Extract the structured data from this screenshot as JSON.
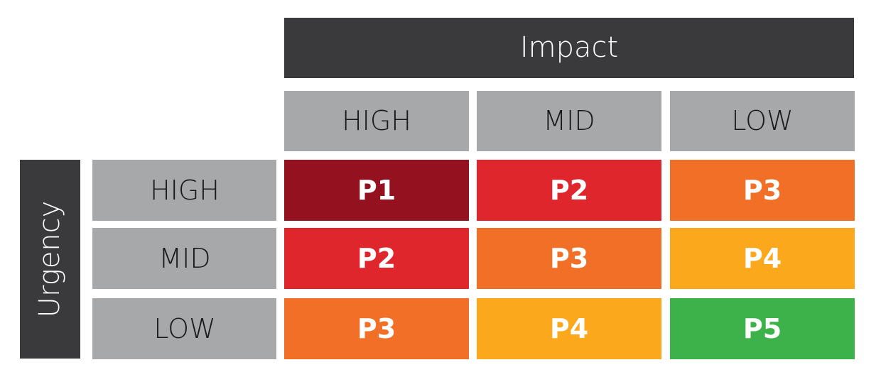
{
  "matrix": {
    "column_title": "Impact",
    "row_title": "Urgency",
    "columns": [
      "HIGH",
      "MID",
      "LOW"
    ],
    "rows": [
      "HIGH",
      "MID",
      "LOW"
    ],
    "cells": [
      [
        {
          "label": "P1",
          "color": "#941120"
        },
        {
          "label": "P2",
          "color": "#e0262d"
        },
        {
          "label": "P3",
          "color": "#f26f27"
        }
      ],
      [
        {
          "label": "P2",
          "color": "#e0262d"
        },
        {
          "label": "P3",
          "color": "#f26f27"
        },
        {
          "label": "P4",
          "color": "#fba81d"
        }
      ],
      [
        {
          "label": "P3",
          "color": "#f26f27"
        },
        {
          "label": "P4",
          "color": "#fba81d"
        },
        {
          "label": "P5",
          "color": "#3db24a"
        }
      ]
    ]
  }
}
